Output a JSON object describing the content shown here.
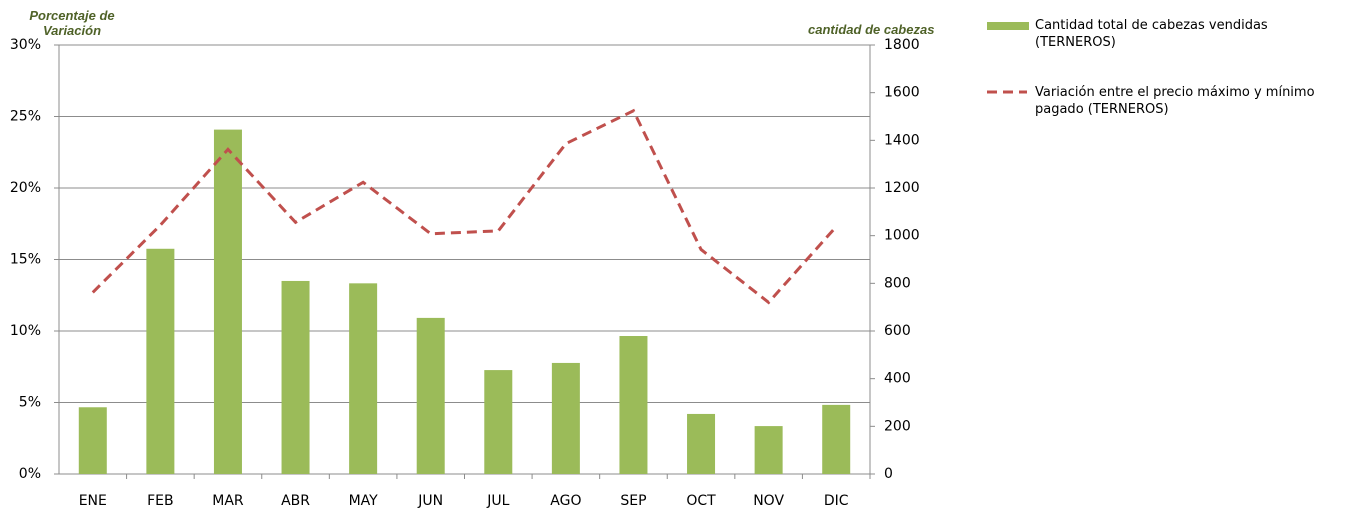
{
  "chart_data": {
    "type": "bar+line",
    "y_label": "Porcentaje de Variación",
    "y2_label": "cantidad de cabezas",
    "categories": [
      "ENE",
      "FEB",
      "MAR",
      "ABR",
      "MAY",
      "JUN",
      "JUL",
      "AGO",
      "SEP",
      "OCT",
      "NOV",
      "DIC"
    ],
    "series": [
      {
        "name": "Cantidad total de cabezas vendidas (TERNEROS)",
        "type": "bar",
        "axis": "y2",
        "color": "#9bbb59",
        "values": [
          280,
          945,
          1445,
          810,
          800,
          655,
          436,
          466,
          579,
          252,
          201,
          290
        ]
      },
      {
        "name": "Variación entre el precio máximo y mínimo pagado (TERNEROS)",
        "type": "line",
        "axis": "y",
        "color": "#c0504d",
        "values": [
          12.7,
          17.4,
          22.7,
          17.6,
          20.4,
          16.8,
          17.0,
          23.1,
          25.4,
          15.7,
          12.0,
          17.3
        ]
      }
    ],
    "ylim": [
      0,
      30
    ],
    "yticks": [
      {
        "value": 0,
        "label": "0%"
      },
      {
        "value": 5,
        "label": "5%"
      },
      {
        "value": 10,
        "label": "10%"
      },
      {
        "value": 15,
        "label": "15%"
      },
      {
        "value": 20,
        "label": "20%"
      },
      {
        "value": 25,
        "label": "25%"
      },
      {
        "value": 30,
        "label": "30%"
      }
    ],
    "y2lim": [
      0,
      1800
    ],
    "y2ticks": [
      0,
      200,
      400,
      600,
      800,
      1000,
      1200,
      1400,
      1600,
      1800
    ],
    "grid": true,
    "legend": "right"
  }
}
